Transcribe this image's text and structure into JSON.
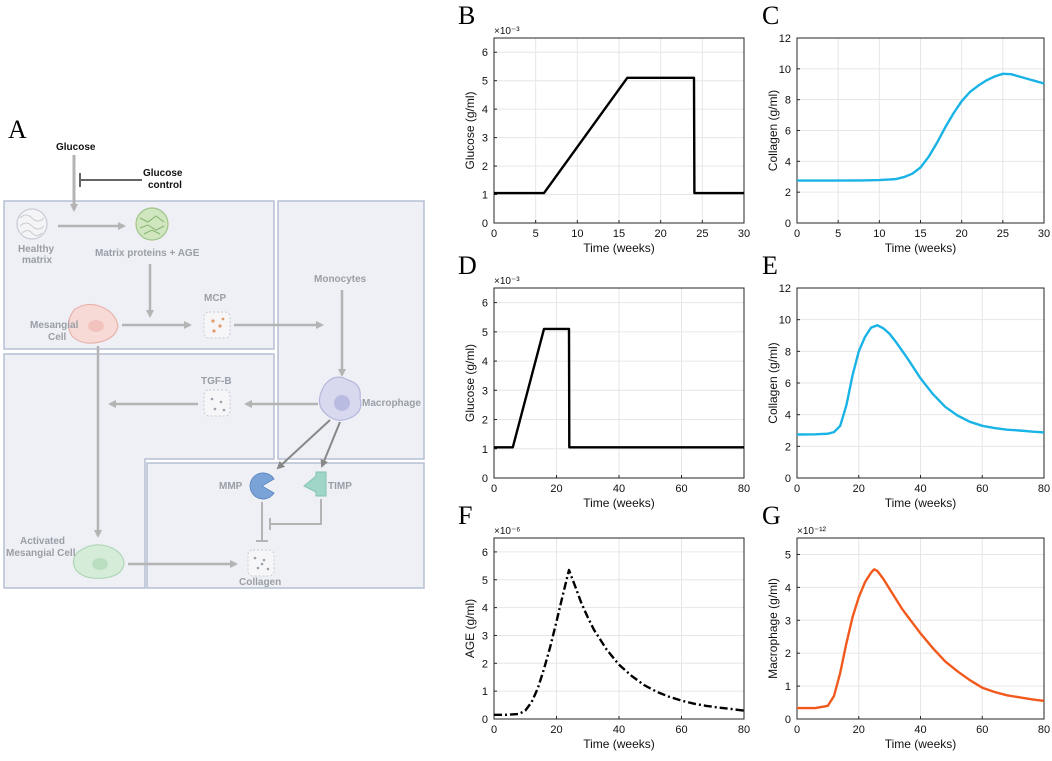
{
  "panel_letters": [
    "A",
    "B",
    "C",
    "D",
    "E",
    "F",
    "G"
  ],
  "diagram": {
    "glucose": "Glucose",
    "glucose_control_1": "Glucose",
    "glucose_control_2": "control",
    "healthy_matrix_1": "Healthy",
    "healthy_matrix_2": "matrix",
    "matrix_proteins": "Matrix proteins + AGE",
    "monocytes": "Monocytes",
    "mcp": "MCP",
    "mesangial_1": "Mesangial",
    "mesangial_2": "Cell",
    "tgfb": "TGF-B",
    "macrophage": "Macrophage",
    "mmp": "MMP",
    "timp": "TIMP",
    "activated_1": "Activated",
    "activated_2": "Mesangial Cell",
    "collagen": "Collagen",
    "colors": {
      "box_fill": "#eef0f6",
      "box_stroke": "#b6bfd3",
      "arrow": "#b4b4b4",
      "mmp": "#7aa3d8",
      "timp": "#9fd6c8"
    }
  },
  "chart_data": [
    {
      "id": "B",
      "type": "line",
      "style": "solid",
      "color": "#000000",
      "xlabel": "Time (weeks)",
      "ylabel": "Glucose (g/ml)",
      "multiplier": "×10⁻³",
      "xlim": [
        0,
        30
      ],
      "ylim": [
        0,
        6.5
      ],
      "xticks": [
        0,
        5,
        10,
        15,
        20,
        25,
        30
      ],
      "yticks": [
        0,
        1,
        2,
        3,
        4,
        5,
        6
      ],
      "x": [
        0,
        6,
        16,
        24,
        24.05,
        30
      ],
      "y": [
        1.05,
        1.05,
        5.1,
        5.1,
        1.05,
        1.05
      ]
    },
    {
      "id": "C",
      "type": "line",
      "style": "solid",
      "color": "#1ab3e6",
      "xlabel": "Time (weeks)",
      "ylabel": "Collagen (g/ml)",
      "xlim": [
        0,
        30
      ],
      "ylim": [
        0,
        12
      ],
      "xticks": [
        0,
        5,
        10,
        15,
        20,
        25,
        30
      ],
      "yticks": [
        0,
        2,
        4,
        6,
        8,
        10,
        12
      ],
      "x": [
        0,
        4,
        8,
        10,
        12,
        13,
        14,
        15,
        16,
        17,
        18,
        19,
        20,
        21,
        22,
        23,
        24,
        25,
        26,
        27,
        28,
        29,
        30
      ],
      "y": [
        2.75,
        2.75,
        2.76,
        2.78,
        2.85,
        2.98,
        3.2,
        3.6,
        4.3,
        5.2,
        6.2,
        7.1,
        7.9,
        8.5,
        8.9,
        9.25,
        9.5,
        9.68,
        9.65,
        9.5,
        9.35,
        9.2,
        9.05
      ]
    },
    {
      "id": "D",
      "type": "line",
      "style": "solid",
      "color": "#000000",
      "xlabel": "Time (weeks)",
      "ylabel": "Glucose (g/ml)",
      "multiplier": "×10⁻³",
      "xlim": [
        0,
        80
      ],
      "ylim": [
        0,
        6.5
      ],
      "xticks": [
        0,
        20,
        40,
        60,
        80
      ],
      "yticks": [
        0,
        1,
        2,
        3,
        4,
        5,
        6
      ],
      "x": [
        0,
        6,
        16,
        24,
        24.1,
        80
      ],
      "y": [
        1.05,
        1.05,
        5.1,
        5.1,
        1.05,
        1.05
      ]
    },
    {
      "id": "E",
      "type": "line",
      "style": "solid",
      "color": "#1ab3e6",
      "xlabel": "Time (weeks)",
      "ylabel": "Collagen (g/ml)",
      "xlim": [
        0,
        80
      ],
      "ylim": [
        0,
        12
      ],
      "xticks": [
        0,
        20,
        40,
        60,
        80
      ],
      "yticks": [
        0,
        2,
        4,
        6,
        8,
        10,
        12
      ],
      "x": [
        0,
        6,
        10,
        12,
        14,
        16,
        18,
        20,
        22,
        24,
        26,
        28,
        30,
        32,
        34,
        36,
        38,
        40,
        44,
        48,
        52,
        56,
        60,
        64,
        68,
        72,
        76,
        80
      ],
      "y": [
        2.75,
        2.76,
        2.8,
        2.9,
        3.3,
        4.6,
        6.5,
        8.0,
        8.9,
        9.5,
        9.65,
        9.45,
        9.1,
        8.6,
        8.05,
        7.5,
        6.9,
        6.3,
        5.3,
        4.5,
        3.95,
        3.55,
        3.3,
        3.15,
        3.05,
        3.0,
        2.93,
        2.88
      ]
    },
    {
      "id": "F",
      "type": "line",
      "style": "dashdot",
      "color": "#000000",
      "xlabel": "Time (weeks)",
      "ylabel": "AGE (g/ml)",
      "multiplier": "×10⁻⁶",
      "xlim": [
        0,
        80
      ],
      "ylim": [
        0,
        6.5
      ],
      "xticks": [
        0,
        20,
        40,
        60,
        80
      ],
      "yticks": [
        0,
        1,
        2,
        3,
        4,
        5,
        6
      ],
      "x": [
        0,
        4,
        8,
        10,
        12,
        14,
        16,
        18,
        20,
        22,
        24,
        26,
        28,
        30,
        32,
        34,
        36,
        40,
        44,
        48,
        52,
        56,
        60,
        64,
        68,
        72,
        76,
        80
      ],
      "y": [
        0.15,
        0.15,
        0.18,
        0.3,
        0.6,
        1.1,
        1.8,
        2.6,
        3.5,
        4.45,
        5.35,
        4.75,
        4.15,
        3.65,
        3.2,
        2.85,
        2.5,
        1.95,
        1.55,
        1.22,
        0.98,
        0.8,
        0.66,
        0.55,
        0.47,
        0.41,
        0.36,
        0.3
      ]
    },
    {
      "id": "G",
      "type": "line",
      "style": "solid",
      "color": "#f2591c",
      "xlabel": "Time (weeks)",
      "ylabel": "Macrophage (g/ml)",
      "multiplier": "×10⁻¹²",
      "xlim": [
        0,
        80
      ],
      "ylim": [
        0,
        5.5
      ],
      "xticks": [
        0,
        20,
        40,
        60,
        80
      ],
      "yticks": [
        0,
        1,
        2,
        3,
        4,
        5
      ],
      "x": [
        0,
        6,
        10,
        12,
        14,
        16,
        18,
        20,
        22,
        24,
        25,
        26,
        28,
        30,
        32,
        34,
        36,
        38,
        40,
        44,
        48,
        52,
        56,
        60,
        64,
        68,
        72,
        76,
        80
      ],
      "y": [
        0.33,
        0.33,
        0.4,
        0.7,
        1.4,
        2.3,
        3.1,
        3.7,
        4.15,
        4.45,
        4.55,
        4.5,
        4.25,
        3.95,
        3.65,
        3.35,
        3.1,
        2.85,
        2.6,
        2.15,
        1.75,
        1.45,
        1.18,
        0.95,
        0.82,
        0.72,
        0.66,
        0.6,
        0.55
      ]
    }
  ]
}
